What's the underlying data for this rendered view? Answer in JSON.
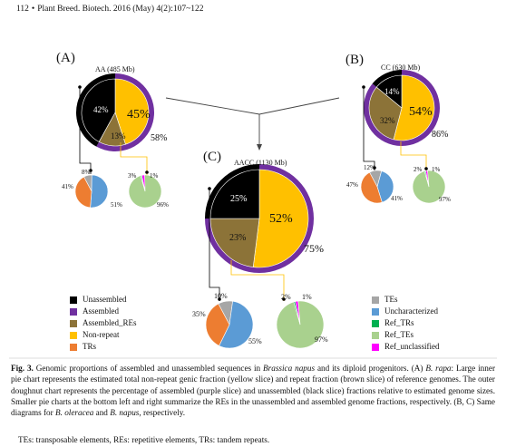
{
  "header": {
    "page": "112",
    "bullet": "•",
    "journal": "Plant Breed. Biotech. 2016 (May) 4(2):107~122"
  },
  "colors": {
    "unassembled": "#000000",
    "assembled": "#7030a0",
    "assembled_res": "#8c7338",
    "nonrepeat": "#ffc000",
    "trs": "#ed7d31",
    "tes": "#a6a6a6",
    "uncharacterized": "#5b9bd5",
    "ref_trs": "#00b050",
    "ref_tes": "#a9d18e",
    "ref_unclassified": "#ff00ff",
    "connector": "#ffc000"
  },
  "panels": {
    "a": {
      "label": "(A)",
      "title": "AA (485 Mb)",
      "inner": {
        "nonrepeat": "45%",
        "unassembled": "42%",
        "res": "13%"
      },
      "outer": "58%",
      "left": {
        "tes": "8%",
        "trs": "41%",
        "unc": "51%"
      },
      "right": {
        "ref_unc": "3%",
        "ref_tes2": "1%",
        "ref_tes": "96%"
      }
    },
    "b": {
      "label": "(B)",
      "title": "CC (630 Mb)",
      "inner": {
        "nonrepeat": "54%",
        "unassembled": "14%",
        "res": "32%"
      },
      "outer": "86%",
      "left": {
        "tes": "12%",
        "trs": "47%",
        "unc": "41%"
      },
      "right": {
        "ref_unc": "2%",
        "ref_tes2": "1%",
        "ref_tes": "97%"
      }
    },
    "c": {
      "label": "(C)",
      "title": "AACC (1130 Mb)",
      "inner": {
        "nonrepeat": "52%",
        "unassembled": "25%",
        "res": "23%"
      },
      "outer": "75%",
      "left": {
        "tes": "10%",
        "trs": "35%",
        "unc": "55%"
      },
      "right": {
        "ref_unc": "2%",
        "ref_tes2": "1%",
        "ref_tes": "97%"
      }
    }
  },
  "chart_data": [
    {
      "type": "pie",
      "title": "AA (485 Mb)",
      "inner": [
        {
          "name": "Non-repeat",
          "value": 45
        },
        {
          "name": "Assembled_REs",
          "value": 13
        },
        {
          "name": "Unassembled",
          "value": 42
        }
      ],
      "outer": [
        {
          "name": "Assembled",
          "value": 58
        },
        {
          "name": "Unassembled",
          "value": 42
        }
      ],
      "left": [
        {
          "name": "TEs",
          "value": 8
        },
        {
          "name": "Uncharacterized",
          "value": 51
        },
        {
          "name": "TRs",
          "value": 41
        }
      ],
      "right": [
        {
          "name": "Ref_unclassified",
          "value": 3
        },
        {
          "name": "Ref_TEs",
          "value": 96
        },
        {
          "name": "Ref_TRs",
          "value": 1
        }
      ]
    },
    {
      "type": "pie",
      "title": "CC (630 Mb)",
      "inner": [
        {
          "name": "Non-repeat",
          "value": 54
        },
        {
          "name": "Assembled_REs",
          "value": 32
        },
        {
          "name": "Unassembled",
          "value": 14
        }
      ],
      "outer": [
        {
          "name": "Assembled",
          "value": 86
        },
        {
          "name": "Unassembled",
          "value": 14
        }
      ],
      "left": [
        {
          "name": "TEs",
          "value": 12
        },
        {
          "name": "Uncharacterized",
          "value": 41
        },
        {
          "name": "TRs",
          "value": 47
        }
      ],
      "right": [
        {
          "name": "Ref_unclassified",
          "value": 2
        },
        {
          "name": "Ref_TEs",
          "value": 97
        },
        {
          "name": "Ref_TRs",
          "value": 1
        }
      ]
    },
    {
      "type": "pie",
      "title": "AACC (1130 Mb)",
      "inner": [
        {
          "name": "Non-repeat",
          "value": 52
        },
        {
          "name": "Assembled_REs",
          "value": 23
        },
        {
          "name": "Unassembled",
          "value": 25
        }
      ],
      "outer": [
        {
          "name": "Assembled",
          "value": 75
        },
        {
          "name": "Unassembled",
          "value": 25
        }
      ],
      "left": [
        {
          "name": "TEs",
          "value": 10
        },
        {
          "name": "Uncharacterized",
          "value": 55
        },
        {
          "name": "TRs",
          "value": 35
        }
      ],
      "right": [
        {
          "name": "Ref_unclassified",
          "value": 2
        },
        {
          "name": "Ref_TEs",
          "value": 97
        },
        {
          "name": "Ref_TRs",
          "value": 1
        }
      ]
    }
  ],
  "legend_left": [
    {
      "label": "Unassembled",
      "color": "#000000"
    },
    {
      "label": "Assembled",
      "color": "#7030a0"
    },
    {
      "label": "Assembled_REs",
      "color": "#8c7338"
    },
    {
      "label": "Non-repeat",
      "color": "#ffc000"
    },
    {
      "label": "TRs",
      "color": "#ed7d31"
    }
  ],
  "legend_right": [
    {
      "label": "TEs",
      "color": "#a6a6a6"
    },
    {
      "label": "Uncharacterized",
      "color": "#5b9bd5"
    },
    {
      "label": "Ref_TRs",
      "color": "#00b050"
    },
    {
      "label": "Ref_TEs",
      "color": "#a9d18e"
    },
    {
      "label": "Ref_unclassified",
      "color": "#ff00ff"
    }
  ],
  "caption": {
    "lead": "Fig. 3.",
    "t1": " Genomic proportions of assembled and unassembled sequences in ",
    "species": "Brassica napus",
    "t2": " and its diploid progenitors. (A) ",
    "rapa": "B. rapa",
    "t3": ": Large inner pie chart represents the estimated total non-repeat genic fraction (yellow slice) and repeat fraction (brown slice) of reference genomes. The outer doughnut chart represents the percentage of assembled (purple slice) and unassembled (black slice) fractions relative to estimated genome sizes. Smaller pie charts at the bottom left and right summarize the REs in the unassembled and assembled genome fractions, respectively. (B, C) Same diagrams for ",
    "oleracea": "B. oleracea",
    "t4": " and ",
    "napus": "B. napus",
    "t5": ", respectively.",
    "abbr": "TEs: transposable elements, REs: repetitive elements, TRs: tandem repeats."
  }
}
